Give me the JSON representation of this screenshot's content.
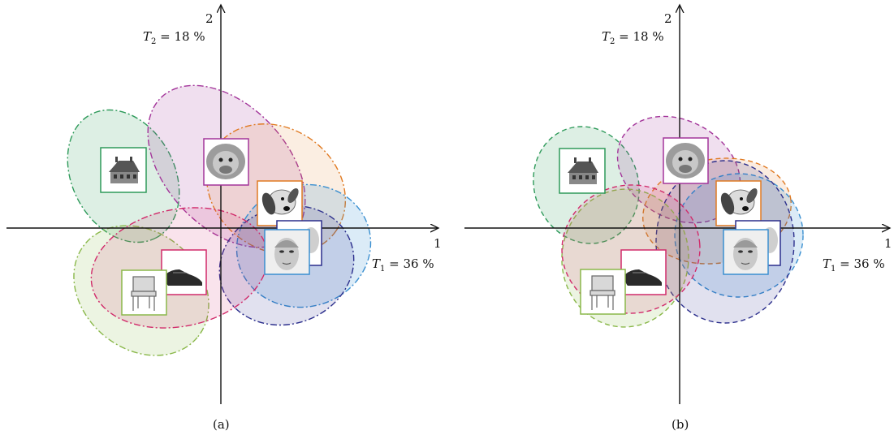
{
  "panels": [
    {
      "id": "a",
      "caption": "(a)",
      "axis1_number": "1",
      "axis2_number": "2",
      "t1_label": "T1 = 36 %",
      "t2_label": "T2 = 18 %",
      "t1_parts": {
        "sym": "T",
        "sub": "1",
        "rest": " = 36 %"
      },
      "t2_parts": {
        "sym": "T",
        "sub": "2",
        "rest": " = 18 %"
      },
      "line_style": "dash-dot"
    },
    {
      "id": "b",
      "caption": "(b)",
      "axis1_number": "1",
      "axis2_number": "2",
      "t1_label": "T1 = 36 %",
      "t2_label": "T2 = 18 %",
      "t1_parts": {
        "sym": "T",
        "sub": "1",
        "rest": " = 36 %"
      },
      "t2_parts": {
        "sym": "T",
        "sub": "2",
        "rest": " = 18 %"
      },
      "line_style": "dashed"
    }
  ],
  "categories": [
    {
      "name": "house",
      "icon": "house-icon",
      "color": "#2e9a5a"
    },
    {
      "name": "monkey",
      "icon": "monkey-face-icon",
      "color": "#a3359a"
    },
    {
      "name": "dog",
      "icon": "dog-face-icon",
      "color": "#e07a22"
    },
    {
      "name": "face-back",
      "icon": "person-face-icon",
      "color": "#2b2e8c"
    },
    {
      "name": "face",
      "icon": "person-face-icon",
      "color": "#3a8fd0"
    },
    {
      "name": "shoe",
      "icon": "shoe-icon",
      "color": "#d12a6a"
    },
    {
      "name": "chair",
      "icon": "chair-icon",
      "color": "#8ab84a"
    }
  ]
}
